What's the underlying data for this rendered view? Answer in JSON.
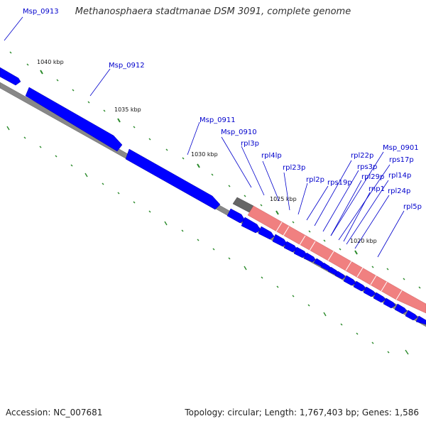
{
  "title": "Methanosphaera stadtmanae DSM 3091, complete genome",
  "footer": {
    "accession": "Accession: NC_007681",
    "summary": "Topology: circular; Length: 1,767,403 bp; Genes: 1,586"
  },
  "colors": {
    "gene": "#0000ff",
    "highlight_gene": "#f08080",
    "dark_gene": "#666666",
    "backbone": "#888888",
    "tick": "#2a8a2a",
    "label": "#0000cc"
  },
  "ruler_labels": [
    "1040 kbp",
    "1035 kbp",
    "1030 kbp",
    "1025 kbp",
    "1020 kbp"
  ],
  "gene_labels": [
    "Msp_0913",
    "Msp_0912",
    "Msp_0911",
    "Msp_0910",
    "rpl3p",
    "rpl4lp",
    "rpl23p",
    "rpl2p",
    "rps19p",
    "rpl22p",
    "Msp_0901",
    "rps3p",
    "rps17p",
    "rpl29p",
    "rpl14p",
    "rnp1",
    "rpl24p",
    "rpl5p"
  ]
}
